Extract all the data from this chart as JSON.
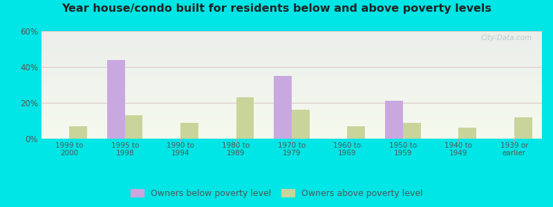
{
  "categories": [
    "1999 to\n2000",
    "1995 to\n1998",
    "1990 to\n1994",
    "1980 to\n1989",
    "1970 to\n1979",
    "1960 to\n1969",
    "1950 to\n1959",
    "1940 to\n1949",
    "1939 or\nearlier"
  ],
  "below_poverty": [
    0,
    44,
    0,
    0,
    35,
    0,
    21,
    0,
    0
  ],
  "above_poverty": [
    7,
    13,
    9,
    23,
    16,
    7,
    9,
    6,
    12
  ],
  "below_color": "#c9a8e0",
  "above_color": "#c8d49a",
  "title": "Year house/condo built for residents below and above poverty levels",
  "title_fontsize": 11.5,
  "ylim": [
    0,
    60
  ],
  "yticks": [
    0,
    20,
    40,
    60
  ],
  "ytick_labels": [
    "0%",
    "20%",
    "40%",
    "60%"
  ],
  "legend_below": "Owners below poverty level",
  "legend_above": "Owners above poverty level",
  "bg_outer": "#00e5e5",
  "grid_color": "#ddc8c8",
  "tick_color": "#555555",
  "bar_width": 0.32,
  "watermark": "City-Data.com"
}
